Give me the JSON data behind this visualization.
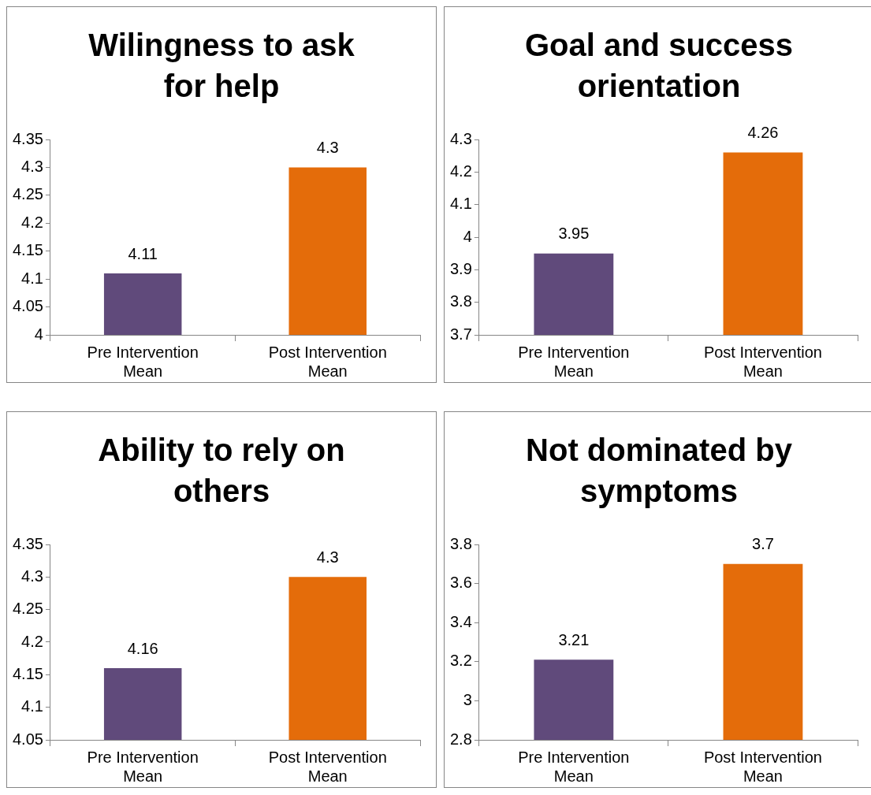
{
  "chart_data": [
    {
      "type": "bar",
      "title": "Wilingness to ask for help",
      "categories": [
        "Pre Intervention Mean",
        "Post Intervention Mean"
      ],
      "values": [
        4.11,
        4.3
      ],
      "colors": [
        "#604a7b",
        "#e46c0a"
      ],
      "ylim": [
        4,
        4.35
      ],
      "yticks": [
        4,
        4.05,
        4.1,
        4.15,
        4.2,
        4.25,
        4.3,
        4.35
      ],
      "grid": false,
      "data_labels": true,
      "legend": false
    },
    {
      "type": "bar",
      "title": "Goal and success orientation",
      "categories": [
        "Pre Intervention Mean",
        "Post Intervention Mean"
      ],
      "values": [
        3.95,
        4.26
      ],
      "colors": [
        "#604a7b",
        "#e46c0a"
      ],
      "ylim": [
        3.7,
        4.3
      ],
      "yticks": [
        3.7,
        3.8,
        3.9,
        4,
        4.1,
        4.2,
        4.3
      ],
      "grid": false,
      "data_labels": true,
      "legend": false
    },
    {
      "type": "bar",
      "title": "Ability to rely on others",
      "categories": [
        "Pre Intervention Mean",
        "Post Intervention Mean"
      ],
      "values": [
        4.16,
        4.3
      ],
      "colors": [
        "#604a7b",
        "#e46c0a"
      ],
      "ylim": [
        4.05,
        4.35
      ],
      "yticks": [
        4.05,
        4.1,
        4.15,
        4.2,
        4.25,
        4.3,
        4.35
      ],
      "grid": false,
      "data_labels": true,
      "legend": false
    },
    {
      "type": "bar",
      "title": "Not dominated by symptoms",
      "categories": [
        "Pre Intervention Mean",
        "Post Intervention Mean"
      ],
      "values": [
        3.21,
        3.7
      ],
      "colors": [
        "#604a7b",
        "#e46c0a"
      ],
      "ylim": [
        2.8,
        3.8
      ],
      "yticks": [
        2.8,
        3,
        3.2,
        3.4,
        3.6,
        3.8
      ],
      "grid": false,
      "data_labels": true,
      "legend": false
    }
  ]
}
